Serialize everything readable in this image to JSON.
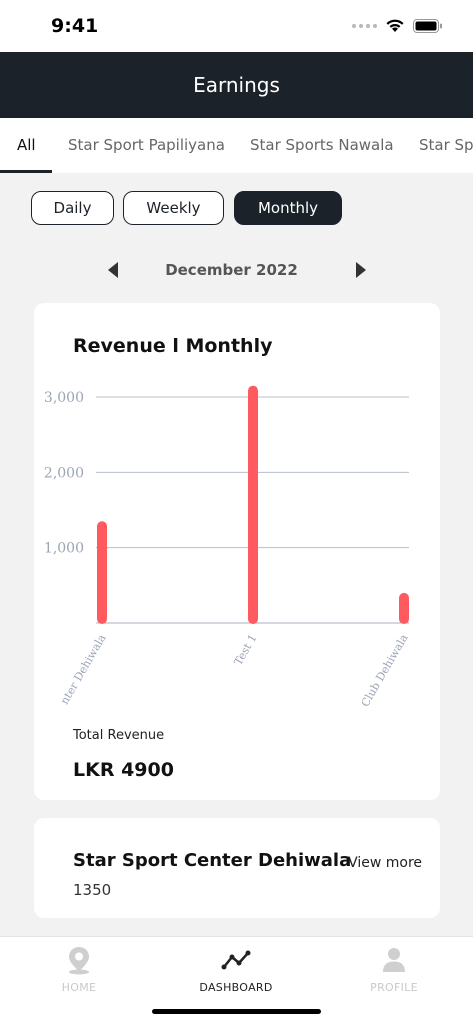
{
  "status_bar": {
    "time": "9:41"
  },
  "header": {
    "title": "Earnings"
  },
  "tabs": [
    {
      "label": "All",
      "active": true
    },
    {
      "label": "Star Sport Papiliyana",
      "active": false
    },
    {
      "label": "Star Sports Nawala",
      "active": false
    },
    {
      "label": "Star Sports Club Dehiwala",
      "active": false
    }
  ],
  "period_buttons": [
    {
      "label": "Daily",
      "active": false
    },
    {
      "label": "Weekly",
      "active": false
    },
    {
      "label": "Monthly",
      "active": true
    }
  ],
  "month_nav": {
    "label": "December 2022"
  },
  "revenue_card": {
    "title": "Revenue l Monthly",
    "total_label": "Total Revenue",
    "total_value": "LKR 4900"
  },
  "chart_data": {
    "type": "bar",
    "categories": [
      "Star Sport Center Dehiwala",
      "Test 1",
      "Star Sports Club Dehiwala"
    ],
    "values": [
      1350,
      3150,
      400
    ],
    "ylim": [
      0,
      3000
    ],
    "yticks": [
      {
        "value": 1000,
        "label": "1,000"
      },
      {
        "value": 2000,
        "label": "2,000"
      },
      {
        "value": 3000,
        "label": "3,000"
      }
    ],
    "tick_labels": [
      "nter Dehiwala",
      "Test 1",
      "Club Dehiwala"
    ],
    "grid": true,
    "bar_color": "#ff5a5f"
  },
  "venue_card": {
    "name": "Star Sport Center Dehiwala",
    "link": "View more",
    "value": "1350"
  },
  "bottom_nav": [
    {
      "label": "HOME",
      "icon": "location-pin-icon",
      "active": false
    },
    {
      "label": "DASHBOARD",
      "icon": "trend-line-icon",
      "active": true
    },
    {
      "label": "PROFILE",
      "icon": "person-icon",
      "active": false
    }
  ],
  "colors": {
    "header_bg": "#1c2229",
    "accent_bar": "#ff5a5f",
    "page_bg": "#f2f2f2"
  }
}
